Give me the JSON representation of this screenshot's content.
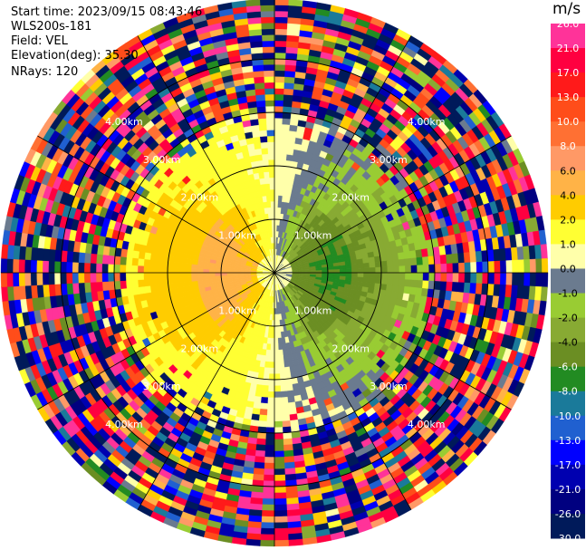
{
  "header": {
    "start_time": "Start time: 2023/09/15 08:43:46",
    "instrument": "WLS200s-181",
    "field": "Field: VEL",
    "elevation": "Elevation(deg): 35.30",
    "nrays": "NRays: 120"
  },
  "colorbar": {
    "unit": "m/s",
    "labels": [
      "26.0",
      "21.0",
      "17.0",
      "13.0",
      "10.0",
      "8.0",
      "6.0",
      "4.0",
      "2.0",
      "1.0",
      "0.0",
      "-1.0",
      "-2.0",
      "-4.0",
      "-6.0",
      "-8.0",
      "-10.0",
      "-13.0",
      "-17.0",
      "-21.0",
      "-26.0",
      "-30.0"
    ],
    "colors": [
      "#ff3399",
      "#ff0040",
      "#ff1a1a",
      "#ff4d1a",
      "#ff7033",
      "#ff9966",
      "#ffb347",
      "#ffcc00",
      "#ffff33",
      "#ffffaa",
      "#6b7b8f",
      "#99cc33",
      "#88aa33",
      "#6b8e23",
      "#228b22",
      "#1a7a9a",
      "#2060d0",
      "#0000ff",
      "#0000b0",
      "#000080",
      "#001a5a"
    ]
  },
  "chart_data": {
    "type": "heatmap",
    "title": "",
    "projection": "polar (PPI scan)",
    "field": "VEL",
    "units": "m/s",
    "range_rings_labels": [
      "1.00km",
      "2.00km",
      "3.00km",
      "4.00km"
    ],
    "range_ring_km": [
      1,
      2,
      3,
      4
    ],
    "vmin": -30.0,
    "vmax": 30.0,
    "nrays": 120,
    "elevation_deg": 35.3,
    "pattern": {
      "clean_data_radius_km": 3.0,
      "near_folding_noise_from_km": 2.9,
      "approaching_sector_az_deg": [
        200,
        340
      ],
      "receding_sector_az_deg": [
        20,
        160
      ],
      "approaching_peak_m_s": 6.0,
      "receding_peak_m_s": -6.0
    }
  }
}
